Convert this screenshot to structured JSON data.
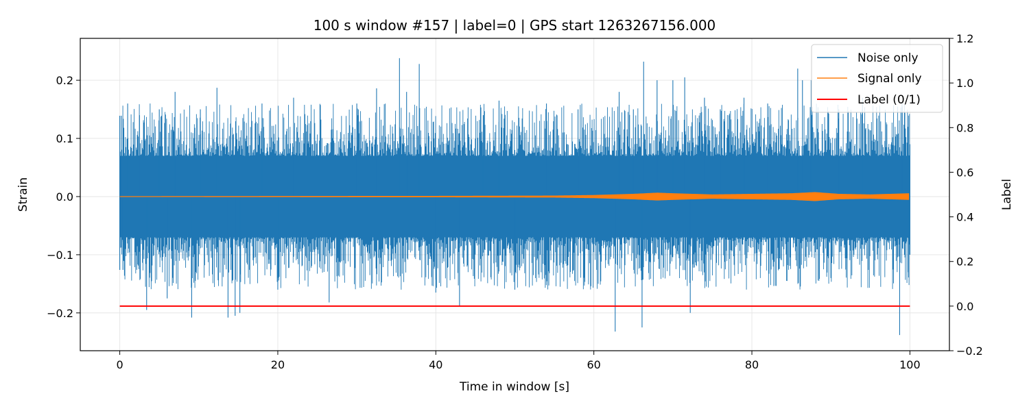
{
  "chart_data": {
    "type": "line",
    "title": "100 s window #157 | label=0 | GPS start 1263267156.000",
    "xlabel": "Time in window [s]",
    "ylabel": "Strain",
    "y2label": "Label",
    "xlim": [
      -5,
      105
    ],
    "ylim": [
      -0.265,
      0.272
    ],
    "y2lim": [
      -0.2,
      1.2
    ],
    "xticks": [
      0,
      20,
      40,
      60,
      80,
      100
    ],
    "yticks": [
      -0.2,
      -0.1,
      0.0,
      0.1,
      0.2
    ],
    "yticklabels": [
      "−0.2",
      "−0.1",
      "0.0",
      "0.1",
      "0.2"
    ],
    "y2ticks": [
      -0.2,
      0.0,
      0.2,
      0.4,
      0.6,
      0.8,
      1.0,
      1.2
    ],
    "y2ticklabels": [
      "−0.2",
      "0.0",
      "0.2",
      "0.4",
      "0.6",
      "0.8",
      "1.0",
      "1.2"
    ],
    "grid": true,
    "legend_position": "top-right",
    "series": [
      {
        "name": "Noise only",
        "color": "#1f77b4",
        "axis": "left",
        "x_range": [
          0,
          100
        ],
        "band_upper": 0.065,
        "band_lower": -0.065,
        "peaks": [
          [
            0.2,
            0.139
          ],
          [
            0.4,
            -0.126
          ],
          [
            1.0,
            0.16
          ],
          [
            2.5,
            0.14
          ],
          [
            3.4,
            -0.195
          ],
          [
            5.0,
            0.15
          ],
          [
            6.0,
            -0.175
          ],
          [
            7.0,
            0.18
          ],
          [
            9.1,
            -0.208
          ],
          [
            10.2,
            0.15
          ],
          [
            12.3,
            0.187
          ],
          [
            13.7,
            -0.208
          ],
          [
            14.6,
            -0.205
          ],
          [
            15.2,
            -0.2
          ],
          [
            18.0,
            0.16
          ],
          [
            20.0,
            -0.16
          ],
          [
            22.0,
            0.17
          ],
          [
            26.5,
            -0.182
          ],
          [
            30.0,
            0.16
          ],
          [
            32.5,
            0.186
          ],
          [
            35.4,
            0.238
          ],
          [
            36.3,
            0.18
          ],
          [
            37.9,
            0.228
          ],
          [
            40.0,
            -0.165
          ],
          [
            43.0,
            -0.188
          ],
          [
            46.0,
            0.14
          ],
          [
            48.0,
            0.165
          ],
          [
            50.0,
            -0.16
          ],
          [
            54.0,
            0.16
          ],
          [
            58.0,
            0.15
          ],
          [
            62.7,
            -0.232
          ],
          [
            63.2,
            0.18
          ],
          [
            65.0,
            0.15
          ],
          [
            66.3,
            0.232
          ],
          [
            66.1,
            -0.225
          ],
          [
            68.0,
            0.2
          ],
          [
            70.0,
            0.2
          ],
          [
            71.5,
            0.205
          ],
          [
            72.2,
            -0.2
          ],
          [
            74.0,
            0.17
          ],
          [
            76.0,
            0.15
          ],
          [
            79.0,
            0.17
          ],
          [
            82.0,
            0.16
          ],
          [
            85.8,
            0.22
          ],
          [
            86.4,
            0.2
          ],
          [
            87.5,
            0.2
          ],
          [
            91.0,
            0.15
          ],
          [
            94.0,
            0.17
          ],
          [
            98.7,
            -0.238
          ],
          [
            99.0,
            0.16
          ],
          [
            99.8,
            -0.13
          ]
        ]
      },
      {
        "name": "Signal only",
        "color": "#ff7f0e",
        "axis": "left",
        "x_range": [
          0,
          100
        ],
        "envelope": [
          [
            0,
            0.0
          ],
          [
            40,
            0.0005
          ],
          [
            55,
            0.001
          ],
          [
            60,
            0.002
          ],
          [
            65,
            0.004
          ],
          [
            68,
            0.006
          ],
          [
            70,
            0.005
          ],
          [
            75,
            0.003
          ],
          [
            80,
            0.004
          ],
          [
            85,
            0.005
          ],
          [
            88,
            0.007
          ],
          [
            91,
            0.004
          ],
          [
            95,
            0.003
          ],
          [
            100,
            0.005
          ]
        ]
      },
      {
        "name": "Label (0/1)",
        "color": "#ff0000",
        "axis": "right",
        "x": [
          0,
          100
        ],
        "y": [
          0,
          0
        ]
      }
    ]
  }
}
